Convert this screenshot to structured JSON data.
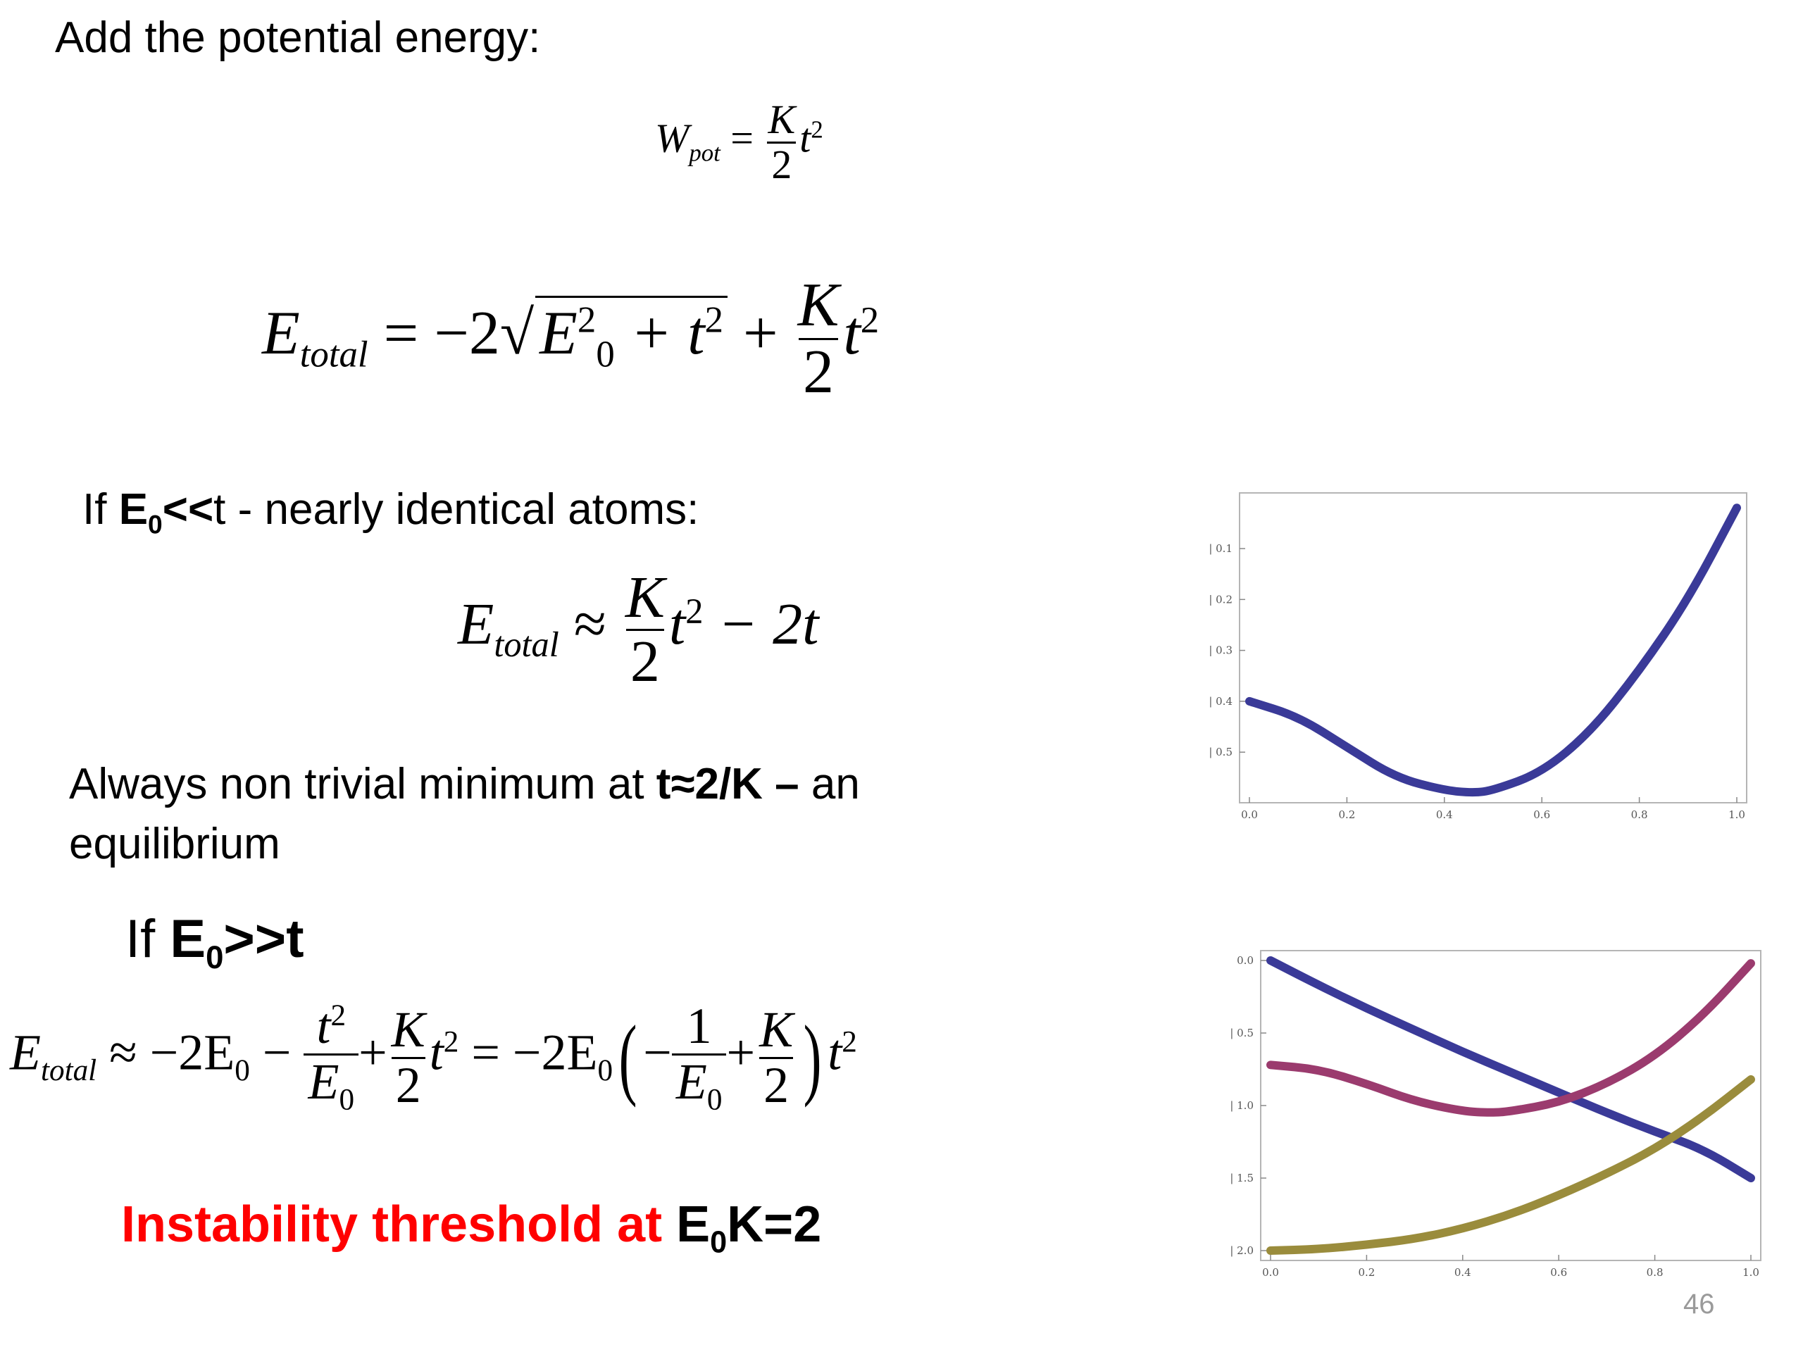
{
  "slide": {
    "heading": "Add the potential energy:",
    "cond1": {
      "prefix": "If ",
      "bold1": "E",
      "sub1": "0",
      "bold2": "<<",
      "rest": "t  - nearly identical atoms:"
    },
    "minimum": {
      "text1": "Always non trivial minimum at ",
      "bold": "t≈2/K –",
      "text2": " an",
      "line2": "equilibrium"
    },
    "cond2": {
      "prefix": "If ",
      "bold": "E",
      "sub": "0",
      "bold2": ">>t"
    },
    "instability": {
      "red": "Instability threshold at ",
      "black": "E",
      "sub": "0",
      "black2": "K=2",
      "red_color": "#ff0000"
    },
    "page_number": "46"
  },
  "equations": {
    "eq1": {
      "lhs": "W",
      "lhs_sub": "pot",
      "eq": "=",
      "num": "K",
      "den": "2",
      "var": "t",
      "exp": "2"
    },
    "eq2": {
      "lhs": "E",
      "lhs_sub": "total",
      "eq": "= −2",
      "inside_E": "E",
      "inside_sup": "2",
      "inside_sub": "0",
      "inside_plus": " + t",
      "inside_exp": "2",
      "plus": " +",
      "num": "K",
      "den": "2",
      "var": "t",
      "exp": "2"
    },
    "eq3": {
      "lhs": "E",
      "lhs_sub": "total",
      "approx": "≈",
      "num": "K",
      "den": "2",
      "var": "t",
      "exp": "2",
      "tail": " − 2t"
    },
    "eq4": {
      "lhs": "E",
      "lhs_sub": "total",
      "approx": "≈ −2E",
      "sub0": "0",
      "minus": " −",
      "f1_num": "t",
      "f1_num_exp": "2",
      "f1_den": "E",
      "f1_den_sub": "0",
      "plus": "+",
      "f2_num": "K",
      "f2_den": "2",
      "var": "t",
      "exp": "2",
      "eq2": " = −2E",
      "sub0b": "0",
      "lparen": "(",
      "inner_minus": "−",
      "f3_num": "1",
      "f3_den": "E",
      "f3_den_sub": "0",
      "plus2": "+",
      "f4_num": "K",
      "f4_den": "2",
      "rparen": ")",
      "var2": "t",
      "exp2": "2"
    }
  },
  "chart_data": [
    {
      "type": "line",
      "x_ticks": [
        "0.0",
        "0.2",
        "0.4",
        "0.6",
        "0.8",
        "1.0"
      ],
      "y_ticks": [
        "0.1",
        "0.2",
        "0.3",
        "0.4",
        "0.5"
      ],
      "xlim": [
        0,
        1
      ],
      "ylim": [
        -0.58,
        -0.01
      ],
      "grid": false,
      "series": [
        {
          "color": "#3a3a98",
          "x": [
            0,
            0.1,
            0.2,
            0.3,
            0.4,
            0.46,
            0.5,
            0.6,
            0.7,
            0.8,
            0.9,
            1.0
          ],
          "y": [
            -0.4,
            -0.43,
            -0.49,
            -0.55,
            -0.575,
            -0.58,
            -0.575,
            -0.54,
            -0.46,
            -0.34,
            -0.2,
            -0.02
          ]
        }
      ]
    },
    {
      "type": "line",
      "x_ticks": [
        "0.0",
        "0.2",
        "0.4",
        "0.6",
        "0.8",
        "1.0"
      ],
      "y_ticks": [
        "0.0",
        "0.5",
        "1.0",
        "1.5",
        "2.0"
      ],
      "xlim": [
        0,
        1
      ],
      "ylim": [
        -2.0,
        0.0
      ],
      "grid": false,
      "series": [
        {
          "color": "#3a3a98",
          "x": [
            0,
            0.1,
            0.2,
            0.3,
            0.4,
            0.5,
            0.6,
            0.7,
            0.8,
            0.9,
            1.0
          ],
          "y": [
            0,
            -0.17,
            -0.33,
            -0.48,
            -0.63,
            -0.77,
            -0.91,
            -1.05,
            -1.18,
            -1.3,
            -1.5
          ]
        },
        {
          "color": "#9b3b6e",
          "x": [
            0,
            0.1,
            0.2,
            0.3,
            0.4,
            0.46,
            0.5,
            0.6,
            0.7,
            0.8,
            0.9,
            1.0
          ],
          "y": [
            -0.72,
            -0.75,
            -0.85,
            -0.97,
            -1.04,
            -1.05,
            -1.04,
            -0.98,
            -0.85,
            -0.66,
            -0.38,
            -0.02
          ]
        },
        {
          "color": "#9a8c3c",
          "x": [
            0,
            0.1,
            0.2,
            0.3,
            0.4,
            0.5,
            0.6,
            0.7,
            0.8,
            0.9,
            1.0
          ],
          "y": [
            -2.0,
            -1.99,
            -1.96,
            -1.92,
            -1.85,
            -1.75,
            -1.62,
            -1.47,
            -1.3,
            -1.08,
            -0.82
          ]
        }
      ]
    }
  ]
}
